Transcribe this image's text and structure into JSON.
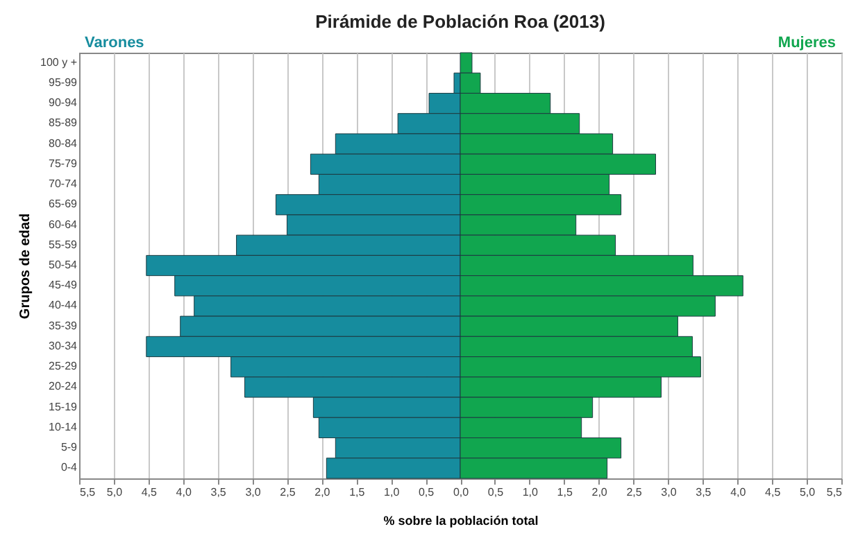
{
  "chart_data": {
    "type": "bar",
    "orientation": "horizontal",
    "title": "Pirámide de Población Roa (2013)",
    "xlabel": "% sobre la población total",
    "ylabel": "Grupos de edad",
    "categories": [
      "100 y +",
      "95-99",
      "90-94",
      "85-89",
      "80-84",
      "75-79",
      "70-74",
      "65-69",
      "60-64",
      "55-59",
      "50-54",
      "45-49",
      "40-44",
      "35-39",
      "30-34",
      "25-29",
      "20-24",
      "15-19",
      "10-14",
      "5-9",
      "0-4"
    ],
    "series": [
      {
        "name": "Varones",
        "color": "#168c9e",
        "values": [
          null,
          -0.09,
          -0.45,
          -0.9,
          -1.8,
          -2.16,
          -2.04,
          -2.66,
          -2.5,
          -3.23,
          -4.53,
          -4.12,
          -3.84,
          -4.04,
          -4.53,
          -3.31,
          -3.11,
          -2.12,
          -2.04,
          -1.8,
          -1.93
        ]
      },
      {
        "name": "Mujeres",
        "color": "#11a64f",
        "values": [
          0.17,
          0.29,
          1.3,
          1.72,
          2.2,
          2.82,
          2.15,
          2.32,
          1.67,
          2.24,
          3.36,
          4.08,
          3.68,
          3.14,
          3.35,
          3.47,
          2.9,
          1.91,
          1.75,
          2.32,
          2.12
        ]
      }
    ],
    "xlim": [
      -5.5,
      5.5
    ],
    "xticks": [
      {
        "value": -5.5,
        "label": "5,5"
      },
      {
        "value": -5,
        "label": "5,0"
      },
      {
        "value": -4.5,
        "label": "4,5"
      },
      {
        "value": -4,
        "label": "4,0"
      },
      {
        "value": -3.5,
        "label": "3,5"
      },
      {
        "value": -3,
        "label": "3,0"
      },
      {
        "value": -2.5,
        "label": "2,5"
      },
      {
        "value": -2,
        "label": "2,0"
      },
      {
        "value": -1.5,
        "label": "1,5"
      },
      {
        "value": -1,
        "label": "1,0"
      },
      {
        "value": -0.5,
        "label": "0,5"
      },
      {
        "value": 0,
        "label": "0,0"
      },
      {
        "value": 0.5,
        "label": "0,5"
      },
      {
        "value": 1,
        "label": "1,0"
      },
      {
        "value": 1.5,
        "label": "1,5"
      },
      {
        "value": 2,
        "label": "2,0"
      },
      {
        "value": 2.5,
        "label": "2,5"
      },
      {
        "value": 3,
        "label": "3,0"
      },
      {
        "value": 3.5,
        "label": "3,5"
      },
      {
        "value": 4,
        "label": "4,0"
      },
      {
        "value": 4.5,
        "label": "4,5"
      },
      {
        "value": 5,
        "label": "5,0"
      },
      {
        "value": 5.5,
        "label": "5,5"
      }
    ],
    "grid": "x",
    "stacked": true
  }
}
